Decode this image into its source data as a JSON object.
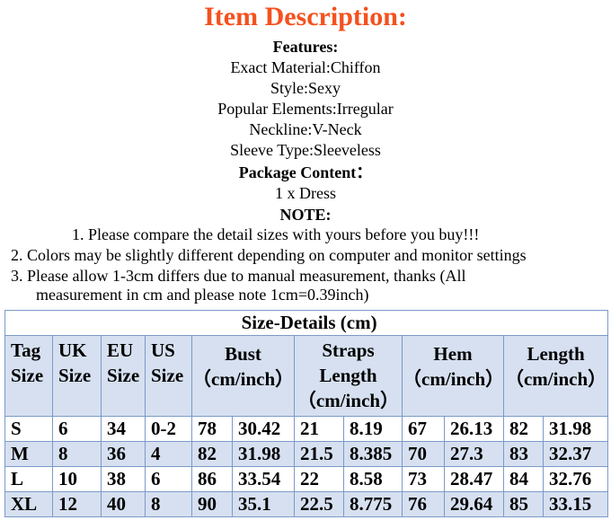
{
  "title": "Item Description:",
  "features_heading": "Features:",
  "features": [
    "Exact Material:Chiffon",
    "Style:Sexy",
    "Popular Elements:Irregular",
    "Neckline:V-Neck",
    "Sleeve Type:Sleeveless"
  ],
  "package_heading": "Package Content：",
  "package": "1 x  Dress",
  "note_heading": "NOTE:",
  "notes": [
    "1.   Please compare the detail sizes with yours before you buy!!!",
    "2.   Colors may be slightly different depending on computer and monitor settings",
    "3.   Please allow 1-3cm differs due to manual measurement, thanks (All",
    "measurement in cm and please note 1cm=0.39inch)"
  ],
  "table": {
    "title": "Size-Details (cm)",
    "headers": [
      [
        "Tag",
        "Size"
      ],
      [
        "UK",
        "Size"
      ],
      [
        "EU",
        "Size"
      ],
      [
        "US",
        "Size"
      ],
      [
        "Bust",
        "（cm/inch）"
      ],
      [
        "Straps",
        "Length",
        "（cm/inch）"
      ],
      [
        "Hem",
        "（cm/inch）"
      ],
      [
        "Length",
        "（cm/inch）"
      ]
    ],
    "rows": [
      [
        "S",
        "6",
        "34",
        "0-2",
        "78",
        "30.42",
        "21",
        "8.19",
        "67",
        "26.13",
        "82",
        "31.98"
      ],
      [
        "M",
        "8",
        "36",
        "4",
        "82",
        "31.98",
        "21.5",
        "8.385",
        "70",
        "27.3",
        "83",
        "32.37"
      ],
      [
        "L",
        "10",
        "38",
        "6",
        "86",
        "33.54",
        "22",
        "8.58",
        "73",
        "28.47",
        "84",
        "32.76"
      ],
      [
        "XL",
        "12",
        "40",
        "8",
        "90",
        "35.1",
        "22.5",
        "8.775",
        "76",
        "29.64",
        "85",
        "33.15"
      ]
    ]
  }
}
